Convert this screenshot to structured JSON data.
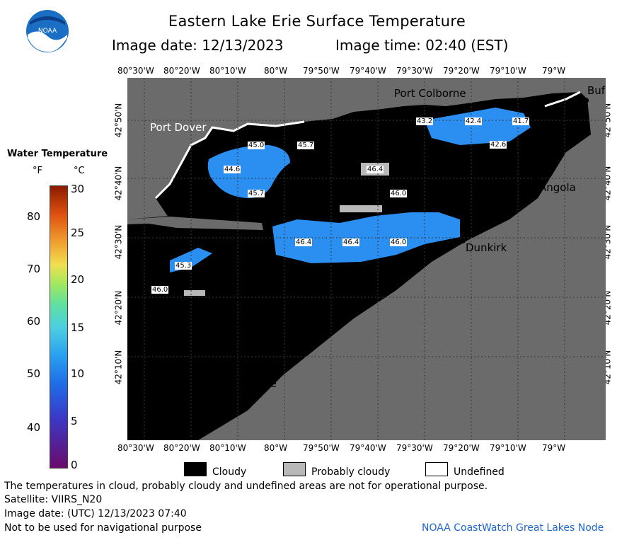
{
  "title": "Eastern Lake Erie Surface Temperature",
  "image_date_label": "Image date: 12/13/2023",
  "image_time_label": "Image time: 02:40 (EST)",
  "logo_text": "NOAA",
  "legend": {
    "title": "Water Temperature",
    "unit_f": "°F",
    "unit_c": "°C",
    "f_ticks": [
      "80",
      "70",
      "60",
      "50",
      "40"
    ],
    "c_ticks": [
      "30",
      "25",
      "20",
      "15",
      "10",
      "5",
      "0"
    ]
  },
  "axes": {
    "top_lon": [
      "80°30'W",
      "80°20'W",
      "80°10'W",
      "80°W",
      "79°50'W",
      "79°40'W",
      "79°30'W",
      "79°20'W",
      "79°10'W",
      "79°W"
    ],
    "bottom_lon": [
      "80°30'W",
      "80°20'W",
      "80°10'W",
      "80°W",
      "79°50'W",
      "79°40'W",
      "79°30'W",
      "79°20'W",
      "79°10'W",
      "79°W"
    ],
    "lat": [
      "42°50'N",
      "42°40'N",
      "42°30'N",
      "42°20'N",
      "42°10'N"
    ]
  },
  "places": {
    "port_colborne": "Port Colborne",
    "port_dover": "Port Dover",
    "angola": "Angola",
    "dunkirk": "Dunkirk",
    "erie": "Erie",
    "buffalo": "Buf"
  },
  "temps": [
    "43.2",
    "42.4",
    "41.7",
    "42.6",
    "45.0",
    "45.7",
    "44.6",
    "45.7",
    "46.4",
    "46.0",
    "46.4",
    "46.4",
    "46.0",
    "45.3",
    "46.0"
  ],
  "map_legend": {
    "cloudy": "Cloudy",
    "probably_cloudy": "Probably cloudy",
    "undefined": "Undefined"
  },
  "footer": {
    "disclaimer": "The temperatures in cloud, probably cloudy and undefined areas are not for operational purpose.",
    "satellite": "Satellite: VIIRS_N20",
    "utc_date": "Image date: (UTC) 12/13/2023  07:40",
    "navigation": "Not to be used for navigational purpose",
    "credit": "NOAA CoastWatch Great Lakes Node"
  },
  "colors": {
    "land": "#6b6b6b",
    "cloud": "#000000",
    "water_blue": "#2a8ff0",
    "probably_cloudy": "#b8b8b8",
    "credit": "#2266cc"
  }
}
